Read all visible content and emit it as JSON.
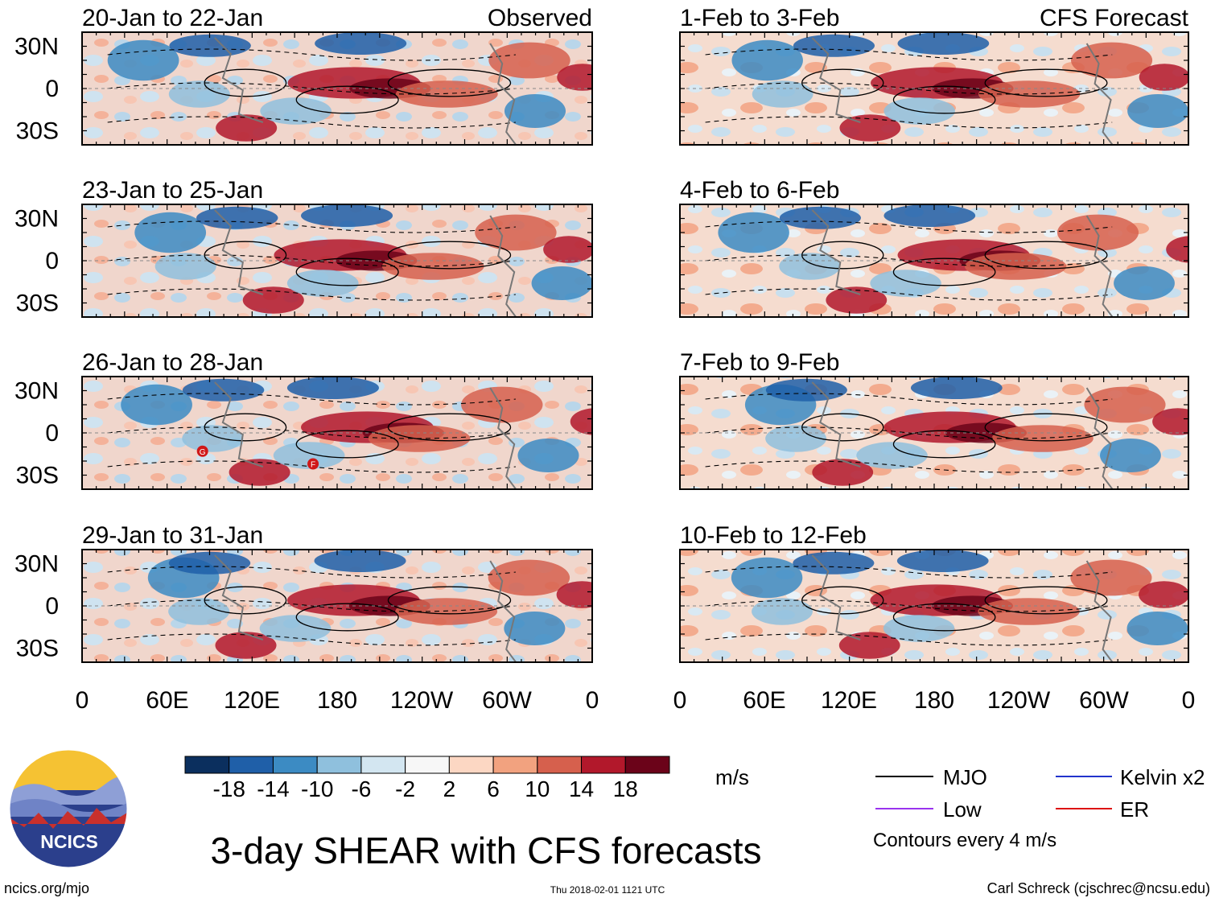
{
  "chart_data": {
    "type": "heatmap",
    "title": "3-day SHEAR with CFS forecasts",
    "variable": "SHEAR",
    "units": "m/s",
    "column_headers": {
      "observed": "Observed",
      "forecast": "CFS Forecast"
    },
    "x_tick_labels": [
      "0",
      "60E",
      "120E",
      "180",
      "120W",
      "60W",
      "0"
    ],
    "y_tick_labels": [
      "30N",
      "0",
      "30S"
    ],
    "xlim_deg_east": [
      0,
      360
    ],
    "ylim_deg": [
      -40,
      40
    ],
    "panels": [
      {
        "period": "20-Jan to 22-Jan",
        "kind": "observed",
        "storms": []
      },
      {
        "period": "23-Jan to 25-Jan",
        "kind": "observed",
        "storms": []
      },
      {
        "period": "26-Jan to 28-Jan",
        "kind": "observed",
        "storms": [
          {
            "label": "G",
            "lon": 85,
            "lat": -13
          },
          {
            "label": "F",
            "lon": 163,
            "lat": -22
          }
        ]
      },
      {
        "period": "29-Jan to 31-Jan",
        "kind": "observed",
        "storms": []
      },
      {
        "period": "1-Feb to 3-Feb",
        "kind": "forecast",
        "storms": []
      },
      {
        "period": "4-Feb to 6-Feb",
        "kind": "forecast",
        "storms": []
      },
      {
        "period": "7-Feb to 9-Feb",
        "kind": "forecast",
        "storms": []
      },
      {
        "period": "10-Feb to 12-Feb",
        "kind": "forecast",
        "storms": []
      }
    ],
    "colorbar": {
      "tick_labels": [
        "-18",
        "-14",
        "-10",
        "-6",
        "-2",
        "2",
        "6",
        "10",
        "14",
        "18"
      ],
      "colors": [
        "#0b2f5e",
        "#1f5fa8",
        "#3c8bc3",
        "#8fc0dd",
        "#d3e6f1",
        "#f7f7f7",
        "#fcd7c3",
        "#f2a27f",
        "#d6604d",
        "#b2182b",
        "#6b0319"
      ],
      "units_label": "m/s"
    },
    "legend": [
      {
        "name": "MJO",
        "color": "#000000"
      },
      {
        "name": "Kelvin x2",
        "color": "#2233cc"
      },
      {
        "name": "Low",
        "color": "#9933ee"
      },
      {
        "name": "ER",
        "color": "#dd1111"
      }
    ],
    "contour_note": "Contours every 4 m/s"
  },
  "footer": {
    "logo_text": "NCICS",
    "site": "ncics.org/mjo",
    "timestamp": "Thu 2018-02-01 1121 UTC",
    "credit": "Carl Schreck (cjschrec@ncsu.edu)"
  },
  "colors": {
    "axis": "#000000",
    "coast": "#777777",
    "equator": "#888888"
  }
}
